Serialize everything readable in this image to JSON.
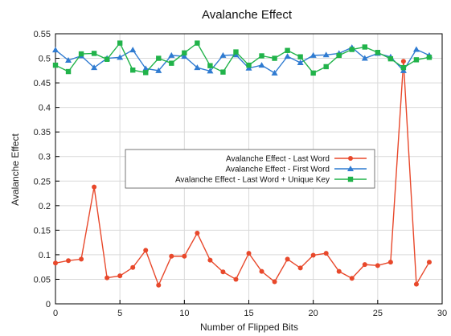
{
  "chart_data": {
    "type": "line",
    "title": "Avalanche Effect",
    "xlabel": "Number of Flipped Bits",
    "ylabel": "Avalanche Effect",
    "xlim": [
      0,
      30
    ],
    "ylim": [
      0,
      0.55
    ],
    "xticks": [
      "0",
      "5",
      "10",
      "15",
      "20",
      "25",
      "30"
    ],
    "yticks": [
      "0",
      "0.05",
      "0.1",
      "0.15",
      "0.2",
      "0.25",
      "0.3",
      "0.35",
      "0.4",
      "0.45",
      "0.5",
      "0.55"
    ],
    "grid": true,
    "legend_position": "center-left",
    "x": [
      0,
      1,
      2,
      3,
      4,
      5,
      6,
      7,
      8,
      9,
      10,
      11,
      12,
      13,
      14,
      15,
      16,
      17,
      18,
      19,
      20,
      21,
      22,
      23,
      24,
      25,
      26,
      27,
      28,
      29
    ],
    "series": [
      {
        "name": "Avalanche Effect - Last Word",
        "color": "#e8482b",
        "marker": "circle",
        "values": [
          0.083,
          0.088,
          0.091,
          0.238,
          0.053,
          0.057,
          0.074,
          0.109,
          0.038,
          0.097,
          0.097,
          0.144,
          0.089,
          0.065,
          0.05,
          0.103,
          0.066,
          0.045,
          0.091,
          0.073,
          0.099,
          0.103,
          0.066,
          0.052,
          0.08,
          0.078,
          0.085,
          0.494,
          0.04,
          0.085
        ]
      },
      {
        "name": "Avalanche Effect - First Word",
        "color": "#2f7bd1",
        "marker": "triangle",
        "values": [
          0.517,
          0.496,
          0.505,
          0.481,
          0.5,
          0.502,
          0.517,
          0.479,
          0.475,
          0.506,
          0.504,
          0.481,
          0.474,
          0.506,
          0.507,
          0.48,
          0.486,
          0.47,
          0.504,
          0.491,
          0.506,
          0.507,
          0.51,
          0.522,
          0.5,
          0.51,
          0.503,
          0.475,
          0.518,
          0.506
        ]
      },
      {
        "name": "Avalanche Effect - Last Word + Unique Key",
        "color": "#21b34a",
        "marker": "square",
        "values": [
          0.486,
          0.473,
          0.509,
          0.51,
          0.498,
          0.531,
          0.476,
          0.471,
          0.5,
          0.49,
          0.511,
          0.531,
          0.485,
          0.472,
          0.513,
          0.486,
          0.505,
          0.5,
          0.516,
          0.503,
          0.47,
          0.483,
          0.506,
          0.518,
          0.523,
          0.512,
          0.499,
          0.481,
          0.497,
          0.502
        ]
      }
    ]
  }
}
